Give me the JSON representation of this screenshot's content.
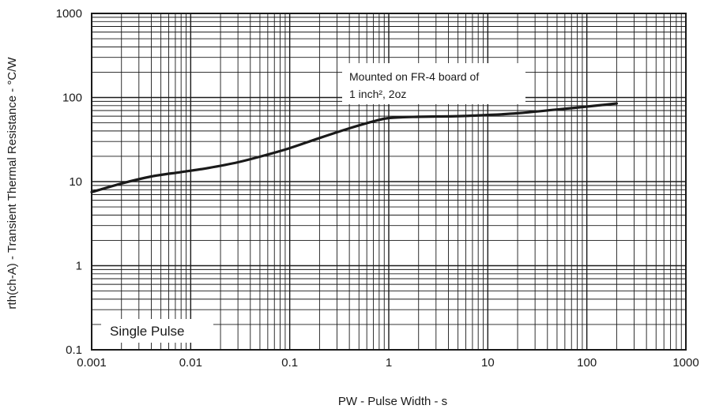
{
  "chart_data": {
    "type": "line",
    "xlabel": "PW - Pulse Width - s",
    "ylabel": "rth(ch-A) - Transient Thermal Resistance - °C/W",
    "xscale": "log",
    "yscale": "log",
    "xlim": [
      0.001,
      1000
    ],
    "ylim": [
      0.1,
      1000
    ],
    "grid": true,
    "x_tick_labels": [
      "0.001",
      "0.01",
      "0.1",
      "1",
      "10",
      "100",
      "1000"
    ],
    "y_tick_labels": [
      "0.1",
      "1",
      "10",
      "100",
      "1000"
    ],
    "series": [
      {
        "x": [
          0.001,
          0.002,
          0.004,
          0.008,
          0.015,
          0.03,
          0.06,
          0.1,
          0.2,
          0.4,
          0.7,
          1,
          2,
          5,
          10,
          20,
          50,
          100,
          200
        ],
        "y": [
          7.5,
          9.5,
          11.5,
          13,
          14.5,
          17,
          21,
          25,
          33,
          43,
          52,
          57,
          59,
          60,
          62,
          65,
          72,
          78,
          85
        ]
      }
    ],
    "annotations": {
      "mount_line1": "Mounted on FR-4 board of",
      "mount_line2": "1 inch², 2oz",
      "pulse": "Single Pulse"
    }
  }
}
